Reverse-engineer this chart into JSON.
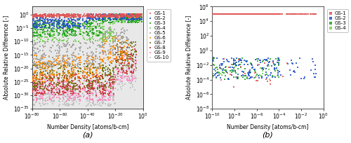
{
  "panel_a": {
    "xlabel": "Number Density [atoms/b-cm]",
    "ylabel": "Absolute Relative Difference [-]",
    "xlim_exp": [
      -80,
      0
    ],
    "ylim_exp": [
      -35,
      3
    ],
    "label": "(a)",
    "background_color": "#e8e8e8",
    "series": [
      {
        "name": "GS-1",
        "color": "#e05555",
        "zorder": 10
      },
      {
        "name": "GS-2",
        "color": "#2050c8",
        "zorder": 9
      },
      {
        "name": "GS-3",
        "color": "#20a020",
        "zorder": 8
      },
      {
        "name": "GS-4",
        "color": "#70d050",
        "zorder": 7
      },
      {
        "name": "GS-5",
        "color": "#a0a0a0",
        "zorder": 6
      },
      {
        "name": "GS-6",
        "color": "#ff8800",
        "zorder": 5
      },
      {
        "name": "GS-7",
        "color": "#707010",
        "zorder": 4
      },
      {
        "name": "GS-8",
        "color": "#c83030",
        "zorder": 3
      },
      {
        "name": "GS-9",
        "color": "#ff80c0",
        "zorder": 2
      },
      {
        "name": "GS-10",
        "color": "#c0c0c0",
        "zorder": 1
      }
    ]
  },
  "panel_b": {
    "xlabel": "Number Density [atoms/b-cm]",
    "ylabel": "Absolute Relative Difference [-]",
    "xlim_exp": [
      -10,
      0
    ],
    "ylim_exp": [
      -8,
      6
    ],
    "label": "(b)",
    "background_color": "#ffffff",
    "series": [
      {
        "name": "GS-1",
        "color": "#e05555",
        "zorder": 4
      },
      {
        "name": "GS-2",
        "color": "#2050c8",
        "zorder": 3
      },
      {
        "name": "GS-3",
        "color": "#20a020",
        "zorder": 2
      },
      {
        "name": "GS-4",
        "color": "#70d050",
        "zorder": 1
      }
    ]
  },
  "tick_fontsize": 5.5,
  "label_fontsize": 5.5,
  "legend_fontsize": 5.0,
  "marker_size": 2,
  "seed": 42
}
